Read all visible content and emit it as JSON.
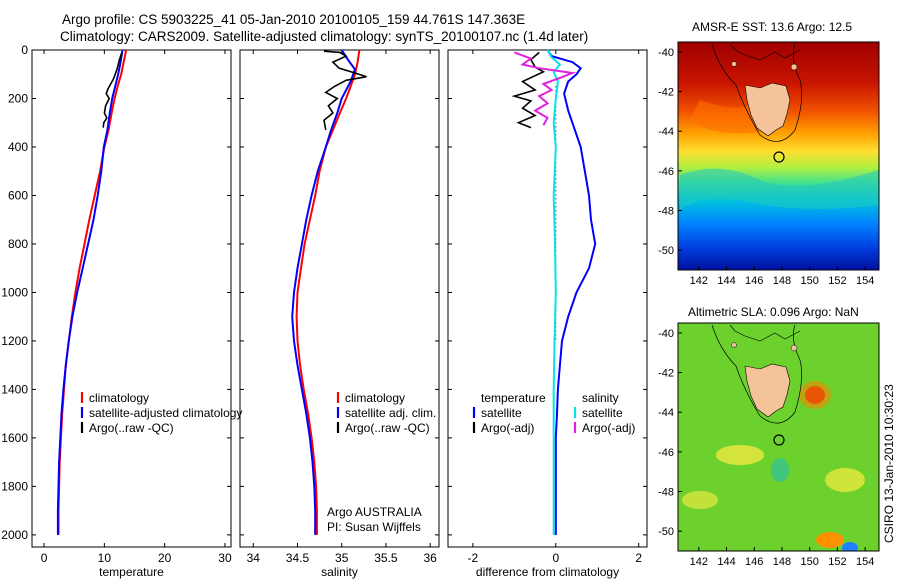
{
  "header": {
    "line1": "Argo profile: CS 5903225_41 05-Jan-2010 20100105_159 44.761S 147.363E",
    "line2": "Climatology: CARS2009. Satellite-adjusted climatology: synTS_20100107.nc (1.4d later)"
  },
  "side_stamp": "CSIRO 13-Jan-2010 10:30:23",
  "colors": {
    "climatology": "#ff0000",
    "satellite": "#0000ff",
    "argo": "#000000",
    "sal_sat": "#00e5ee",
    "sal_argo": "#e020e0",
    "land": "#f5c39a"
  },
  "chart_data": [
    {
      "id": "temperature",
      "type": "line",
      "xlabel": "temperature",
      "xlim": [
        -2,
        31
      ],
      "ylim": [
        0,
        2050
      ],
      "y_reversed": true,
      "xticks": [
        0,
        10,
        20,
        30
      ],
      "yticks": [
        0,
        200,
        400,
        600,
        800,
        1000,
        1200,
        1400,
        1600,
        1800,
        2000
      ],
      "legend": [
        "climatology",
        "satellite-adjusted climatology",
        "Argo(..raw -QC)"
      ],
      "series": [
        {
          "name": "climatology",
          "color": "#ff0000",
          "points": [
            [
              13.6,
              0
            ],
            [
              13.2,
              50
            ],
            [
              12.8,
              100
            ],
            [
              12.2,
              150
            ],
            [
              11.7,
              200
            ],
            [
              11.2,
              260
            ],
            [
              10.7,
              330
            ],
            [
              10.0,
              400
            ],
            [
              9.3,
              500
            ],
            [
              8.4,
              600
            ],
            [
              7.5,
              700
            ],
            [
              6.7,
              800
            ],
            [
              5.9,
              900
            ],
            [
              5.2,
              1000
            ],
            [
              4.6,
              1100
            ],
            [
              4.1,
              1200
            ],
            [
              3.6,
              1300
            ],
            [
              3.3,
              1400
            ],
            [
              3.0,
              1500
            ],
            [
              2.8,
              1600
            ],
            [
              2.6,
              1700
            ],
            [
              2.5,
              1800
            ],
            [
              2.4,
              1900
            ],
            [
              2.4,
              2000
            ]
          ]
        },
        {
          "name": "satellite-adjusted climatology",
          "color": "#0000ff",
          "points": [
            [
              13.0,
              0
            ],
            [
              12.7,
              50
            ],
            [
              12.3,
              100
            ],
            [
              11.8,
              150
            ],
            [
              11.3,
              200
            ],
            [
              10.9,
              260
            ],
            [
              10.5,
              330
            ],
            [
              9.9,
              400
            ],
            [
              9.5,
              500
            ],
            [
              8.9,
              600
            ],
            [
              8.2,
              700
            ],
            [
              7.3,
              800
            ],
            [
              6.4,
              900
            ],
            [
              5.5,
              1000
            ],
            [
              4.7,
              1100
            ],
            [
              4.1,
              1200
            ],
            [
              3.6,
              1300
            ],
            [
              3.2,
              1400
            ],
            [
              2.9,
              1500
            ],
            [
              2.7,
              1600
            ],
            [
              2.5,
              1700
            ],
            [
              2.4,
              1800
            ],
            [
              2.3,
              1900
            ],
            [
              2.3,
              2000
            ]
          ]
        },
        {
          "name": "Argo(..raw -QC)",
          "color": "#000000",
          "points": [
            [
              12.9,
              10
            ],
            [
              12.5,
              40
            ],
            [
              12.1,
              80
            ],
            [
              11.5,
              120
            ],
            [
              10.6,
              160
            ],
            [
              10.3,
              180
            ],
            [
              10.8,
              200
            ],
            [
              10.2,
              230
            ],
            [
              10.0,
              260
            ],
            [
              10.4,
              280
            ],
            [
              9.9,
              300
            ],
            [
              9.8,
              320
            ]
          ]
        }
      ]
    },
    {
      "id": "salinity",
      "type": "line",
      "xlabel": "salinity",
      "xlim": [
        33.85,
        36.1
      ],
      "ylim": [
        0,
        2050
      ],
      "y_reversed": true,
      "xticks": [
        34,
        34.5,
        35,
        35.5,
        36
      ],
      "legend": [
        "climatology",
        "satellite adj. clim.",
        "Argo(..raw -QC)"
      ],
      "annotation": [
        "Argo AUSTRALIA",
        "PI: Susan Wijffels"
      ],
      "series": [
        {
          "name": "climatology",
          "color": "#ff0000",
          "points": [
            [
              35.2,
              0
            ],
            [
              35.18,
              50
            ],
            [
              35.15,
              100
            ],
            [
              35.1,
              150
            ],
            [
              35.05,
              200
            ],
            [
              34.98,
              260
            ],
            [
              34.9,
              330
            ],
            [
              34.82,
              400
            ],
            [
              34.75,
              500
            ],
            [
              34.7,
              600
            ],
            [
              34.64,
              700
            ],
            [
              34.58,
              800
            ],
            [
              34.54,
              900
            ],
            [
              34.5,
              1000
            ],
            [
              34.49,
              1100
            ],
            [
              34.5,
              1200
            ],
            [
              34.53,
              1300
            ],
            [
              34.57,
              1400
            ],
            [
              34.62,
              1500
            ],
            [
              34.66,
              1600
            ],
            [
              34.69,
              1700
            ],
            [
              34.71,
              1800
            ],
            [
              34.72,
              1900
            ],
            [
              34.72,
              2000
            ]
          ]
        },
        {
          "name": "satellite adj. clim.",
          "color": "#0000ff",
          "points": [
            [
              35.0,
              0
            ],
            [
              35.07,
              40
            ],
            [
              35.15,
              80
            ],
            [
              35.1,
              130
            ],
            [
              35.0,
              200
            ],
            [
              34.95,
              260
            ],
            [
              34.88,
              330
            ],
            [
              34.82,
              400
            ],
            [
              34.73,
              500
            ],
            [
              34.66,
              600
            ],
            [
              34.6,
              700
            ],
            [
              34.55,
              800
            ],
            [
              34.5,
              900
            ],
            [
              34.46,
              1000
            ],
            [
              34.44,
              1100
            ],
            [
              34.46,
              1200
            ],
            [
              34.5,
              1300
            ],
            [
              34.55,
              1400
            ],
            [
              34.6,
              1500
            ],
            [
              34.64,
              1600
            ],
            [
              34.67,
              1700
            ],
            [
              34.69,
              1800
            ],
            [
              34.7,
              1900
            ],
            [
              34.7,
              2000
            ]
          ]
        },
        {
          "name": "Argo(..raw -QC)",
          "color": "#000000",
          "points": [
            [
              34.8,
              5
            ],
            [
              34.98,
              10
            ],
            [
              35.05,
              25
            ],
            [
              34.9,
              50
            ],
            [
              34.97,
              75
            ],
            [
              35.15,
              95
            ],
            [
              35.28,
              110
            ],
            [
              35.05,
              125
            ],
            [
              34.92,
              150
            ],
            [
              34.82,
              175
            ],
            [
              34.95,
              200
            ],
            [
              34.85,
              230
            ],
            [
              34.9,
              260
            ],
            [
              34.8,
              290
            ],
            [
              34.82,
              330
            ]
          ]
        }
      ]
    },
    {
      "id": "difference",
      "type": "line",
      "xlabel": "difference from climatology",
      "xlim": [
        -2.6,
        2.2
      ],
      "ylim": [
        0,
        2050
      ],
      "y_reversed": true,
      "xticks": [
        -2,
        0,
        2
      ],
      "legend_temperature": [
        "temperature",
        "satellite",
        "Argo(-adj)"
      ],
      "legend_salinity": [
        "salinity",
        "satellite",
        "Argo(-adj)"
      ],
      "series": [
        {
          "name": "temperature satellite",
          "color": "#0000ff",
          "points": [
            [
              -0.2,
              0
            ],
            [
              -0.1,
              25
            ],
            [
              0.4,
              50
            ],
            [
              0.6,
              75
            ],
            [
              0.5,
              100
            ],
            [
              0.3,
              130
            ],
            [
              0.2,
              180
            ],
            [
              0.3,
              250
            ],
            [
              0.6,
              400
            ],
            [
              0.8,
              600
            ],
            [
              0.85,
              700
            ],
            [
              0.95,
              800
            ],
            [
              0.8,
              900
            ],
            [
              0.5,
              1000
            ],
            [
              0.3,
              1100
            ],
            [
              0.15,
              1200
            ],
            [
              0.1,
              1300
            ],
            [
              0.05,
              1400
            ],
            [
              0.03,
              1500
            ],
            [
              0.0,
              1600
            ],
            [
              0.0,
              1800
            ],
            [
              0.0,
              2000
            ]
          ]
        },
        {
          "name": "temperature Argo(-adj)",
          "color": "#000000",
          "points": [
            [
              -0.4,
              10
            ],
            [
              -0.6,
              40
            ],
            [
              -0.5,
              70
            ],
            [
              -0.3,
              90
            ],
            [
              -0.8,
              130
            ],
            [
              -0.5,
              165
            ],
            [
              -1.0,
              190
            ],
            [
              -0.6,
              210
            ],
            [
              -0.8,
              240
            ],
            [
              -0.5,
              270
            ],
            [
              -0.9,
              300
            ],
            [
              -0.6,
              320
            ]
          ]
        },
        {
          "name": "salinity satellite",
          "color": "#00e5ee",
          "points": [
            [
              -0.2,
              0
            ],
            [
              -0.1,
              30
            ],
            [
              0.1,
              60
            ],
            [
              -0.05,
              90
            ],
            [
              0.05,
              130
            ],
            [
              0.0,
              200
            ],
            [
              -0.05,
              300
            ],
            [
              0.0,
              400
            ],
            [
              -0.05,
              600
            ],
            [
              -0.02,
              800
            ],
            [
              0.0,
              1000
            ],
            [
              -0.03,
              1200
            ],
            [
              -0.05,
              1400
            ],
            [
              -0.05,
              1600
            ],
            [
              -0.05,
              1800
            ],
            [
              -0.05,
              2000
            ]
          ]
        },
        {
          "name": "salinity Argo(-adj)",
          "color": "#e020e0",
          "points": [
            [
              -1.0,
              10
            ],
            [
              -0.6,
              35
            ],
            [
              -0.8,
              60
            ],
            [
              -0.4,
              75
            ],
            [
              0.4,
              95
            ],
            [
              0.1,
              115
            ],
            [
              -0.3,
              140
            ],
            [
              -0.1,
              165
            ],
            [
              -0.4,
              190
            ],
            [
              -0.2,
              220
            ],
            [
              -0.5,
              250
            ],
            [
              -0.2,
              280
            ],
            [
              -0.3,
              310
            ]
          ]
        }
      ]
    },
    {
      "id": "sst_map",
      "type": "heatmap",
      "title": "AMSR-E SST: 13.6 Argo: 12.5",
      "xticks": [
        142,
        144,
        146,
        148,
        150,
        152,
        154
      ],
      "yticks": [
        -40,
        -42,
        -44,
        -46,
        -48,
        -50
      ],
      "xlim": [
        140.5,
        155
      ],
      "ylim": [
        -51,
        -39.5
      ],
      "float_position": {
        "lon": 147.363,
        "lat": -44.761
      }
    },
    {
      "id": "sla_map",
      "type": "heatmap",
      "title": "Altimetric SLA: 0.096 Argo: NaN",
      "xticks": [
        142,
        144,
        146,
        148,
        150,
        152,
        154
      ],
      "yticks": [
        -40,
        -42,
        -44,
        -46,
        -48,
        -50
      ],
      "xlim": [
        140.5,
        155
      ],
      "ylim": [
        -51,
        -39.5
      ],
      "float_position": {
        "lon": 147.363,
        "lat": -44.761
      }
    }
  ]
}
